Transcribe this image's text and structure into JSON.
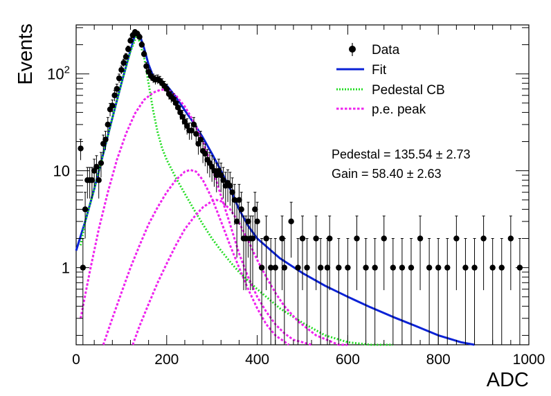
{
  "chart_data": {
    "type": "scatter",
    "xlabel": "ADC",
    "ylabel": "Events",
    "xlim": [
      0,
      1000
    ],
    "ylim": [
      0.16,
      320
    ],
    "y_scale": "log",
    "grid": false,
    "legend_position": "top-right",
    "x_ticks": [
      "0",
      "200",
      "400",
      "600",
      "800",
      "1000"
    ],
    "x_tick_values": [
      0,
      200,
      400,
      600,
      800,
      1000
    ],
    "y_ticks": [
      "1",
      "10",
      "10^2"
    ],
    "y_tick_values": [
      1,
      10,
      100
    ],
    "y_tick_label_parts": [
      [
        "1",
        ""
      ],
      [
        "10",
        ""
      ],
      [
        "10",
        "2"
      ]
    ],
    "legend": [
      {
        "label": "Data",
        "style": "marker",
        "color": "#000000"
      },
      {
        "label": "Fit",
        "style": "solid",
        "color": "#0a22d6"
      },
      {
        "label": "Pedestal CB",
        "style": "dotted",
        "color": "#22dd22"
      },
      {
        "label": "p.e. peak",
        "style": "dashed",
        "color": "#ee22ee"
      }
    ],
    "annotations": [
      {
        "text": "Pedestal = 135.54 ± 2.73"
      },
      {
        "text": "Gain = 58.40 ± 2.63"
      }
    ],
    "series": [
      {
        "name": "Data",
        "kind": "points_with_errors",
        "color": "#000000",
        "x": [
          10,
          15,
          20,
          25,
          30,
          35,
          40,
          45,
          50,
          55,
          60,
          65,
          70,
          75,
          80,
          85,
          90,
          95,
          100,
          105,
          110,
          115,
          120,
          125,
          130,
          135,
          140,
          145,
          150,
          155,
          160,
          165,
          170,
          175,
          180,
          185,
          190,
          195,
          200,
          205,
          210,
          215,
          220,
          225,
          230,
          235,
          240,
          245,
          250,
          255,
          260,
          265,
          270,
          275,
          280,
          285,
          290,
          295,
          300,
          305,
          310,
          315,
          320,
          325,
          330,
          335,
          340,
          345,
          350,
          355,
          360,
          365,
          370,
          375,
          380,
          385,
          390,
          395,
          400,
          410,
          420,
          430,
          440,
          455,
          460,
          475,
          490,
          500,
          510,
          530,
          540,
          555,
          560,
          580,
          600,
          620,
          640,
          660,
          680,
          700,
          720,
          740,
          760,
          780,
          800,
          820,
          840,
          860,
          880,
          900,
          920,
          940,
          960,
          980
        ],
        "y": [
          17,
          1,
          4,
          8,
          8,
          8,
          10,
          11,
          8,
          12,
          19,
          21,
          30,
          43,
          47,
          60,
          70,
          90,
          110,
          130,
          150,
          180,
          220,
          250,
          270,
          260,
          240,
          200,
          160,
          120,
          105,
          95,
          90,
          87,
          88,
          85,
          80,
          75,
          70,
          62,
          58,
          55,
          50,
          45,
          40,
          36,
          32,
          29,
          26,
          26,
          30,
          24,
          19,
          21,
          16,
          15,
          13,
          12,
          11,
          10,
          9,
          10,
          9,
          8,
          7,
          7.5,
          7,
          6,
          5,
          3,
          5,
          4,
          2,
          2,
          3,
          2,
          2,
          4,
          3,
          1,
          2,
          1,
          1,
          2,
          1,
          3,
          1,
          2,
          1,
          2,
          1,
          1,
          2,
          1,
          1,
          2,
          1,
          1,
          2,
          1,
          1,
          1,
          2,
          1,
          1,
          1,
          2,
          1,
          1,
          2,
          1,
          1,
          2,
          1
        ]
      },
      {
        "name": "Fit",
        "kind": "line",
        "color": "#0a22d6",
        "x": [
          0,
          20,
          40,
          60,
          80,
          100,
          120,
          130,
          135,
          140,
          150,
          160,
          170,
          180,
          190,
          200,
          220,
          240,
          260,
          280,
          300,
          320,
          340,
          360,
          380,
          400,
          450,
          500,
          550,
          600,
          650,
          700,
          750,
          800,
          850,
          880
        ],
        "y": [
          1.5,
          3.0,
          6.5,
          15,
          35,
          80,
          175,
          250,
          270,
          255,
          185,
          125,
          95,
          85,
          80,
          76,
          58,
          42,
          31,
          22,
          15,
          10,
          6.5,
          4,
          2.7,
          2.0,
          1.25,
          0.88,
          0.65,
          0.5,
          0.39,
          0.31,
          0.25,
          0.2,
          0.17,
          0.16
        ]
      },
      {
        "name": "Pedestal CB",
        "kind": "line",
        "color": "#22dd22",
        "x": [
          10,
          20,
          40,
          60,
          80,
          100,
          120,
          135,
          150,
          160,
          170,
          180,
          190,
          200,
          220,
          240,
          260,
          280,
          300,
          320,
          340,
          360,
          400,
          450,
          500,
          550,
          600,
          650,
          700
        ],
        "y": [
          1.7,
          3.0,
          6.5,
          15,
          35,
          80,
          170,
          255,
          150,
          80,
          42,
          25,
          17,
          13,
          8.5,
          5.8,
          4.0,
          2.8,
          2.0,
          1.5,
          1.15,
          0.9,
          0.6,
          0.38,
          0.27,
          0.2,
          0.17,
          0.16,
          0.16
        ]
      },
      {
        "name": "p.e. peak",
        "kind": "line",
        "color": "#ee22ee",
        "x": [
          10,
          30,
          50,
          70,
          90,
          110,
          130,
          150,
          170,
          185,
          194,
          205,
          220,
          240,
          260,
          280,
          300,
          320,
          340,
          360,
          380,
          400,
          420,
          440,
          460,
          480,
          500,
          520
        ],
        "y": [
          0.3,
          0.9,
          2.5,
          6.0,
          13,
          24,
          39,
          54,
          64,
          68,
          69,
          67,
          60,
          46,
          32,
          20,
          11,
          5.5,
          2.8,
          1.4,
          0.8,
          0.5,
          0.35,
          0.26,
          0.21,
          0.18,
          0.17,
          0.16
        ]
      },
      {
        "name": "p.e. peak",
        "kind": "line",
        "color": "#ee22ee",
        "x": [
          60,
          80,
          100,
          120,
          140,
          160,
          180,
          200,
          220,
          240,
          252,
          265,
          280,
          300,
          320,
          340,
          360,
          380,
          400,
          420,
          440,
          470
        ],
        "y": [
          0.16,
          0.3,
          0.55,
          1.0,
          1.7,
          2.8,
          4.2,
          6.0,
          8.0,
          9.8,
          10.2,
          9.8,
          8.0,
          5.2,
          3.0,
          1.7,
          1.0,
          0.6,
          0.38,
          0.26,
          0.2,
          0.16
        ]
      },
      {
        "name": "p.e. peak",
        "kind": "line",
        "color": "#ee22ee",
        "x": [
          125,
          140,
          160,
          180,
          200,
          220,
          240,
          260,
          280,
          300,
          310,
          320,
          340,
          360,
          380,
          400,
          420,
          440,
          460,
          490,
          530,
          580,
          600
        ],
        "y": [
          0.16,
          0.25,
          0.42,
          0.7,
          1.1,
          1.7,
          2.5,
          3.3,
          4.2,
          4.85,
          5.0,
          4.85,
          4.0,
          2.9,
          1.9,
          1.2,
          0.8,
          0.55,
          0.4,
          0.28,
          0.2,
          0.16,
          0.16
        ]
      }
    ]
  }
}
